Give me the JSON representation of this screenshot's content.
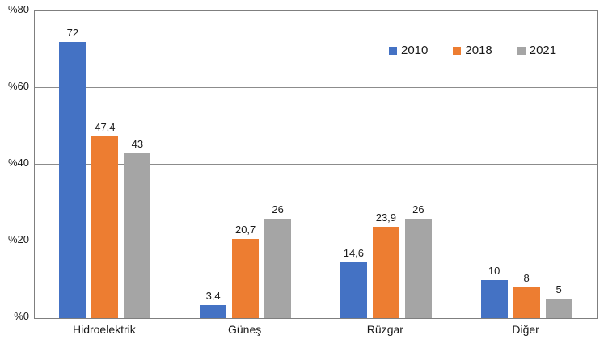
{
  "chart_data": {
    "type": "bar",
    "title": "",
    "xlabel": "",
    "ylabel": "",
    "categories": [
      "Hidroelektrik",
      "Güneş",
      "Rüzgar",
      "Diğer"
    ],
    "series": [
      {
        "name": "2010",
        "color": "#4472C4",
        "values": [
          72,
          3.4,
          14.6,
          10
        ],
        "labels": [
          "72",
          "3,4",
          "14,6",
          "10"
        ]
      },
      {
        "name": "2018",
        "color": "#ED7D31",
        "values": [
          47.4,
          20.7,
          23.9,
          8
        ],
        "labels": [
          "47,4",
          "20,7",
          "23,9",
          "8"
        ]
      },
      {
        "name": "2021",
        "color": "#A5A5A5",
        "values": [
          43,
          26,
          26,
          5
        ],
        "labels": [
          "43",
          "26",
          "26",
          "5"
        ]
      }
    ],
    "ylim": [
      0,
      80
    ],
    "yticks": [
      0,
      20,
      40,
      60,
      80
    ],
    "ytick_labels": [
      "%0",
      "%20",
      "%40",
      "%60",
      "%80"
    ],
    "grid": true,
    "legend_position": "top-right-inside"
  },
  "colors": {
    "background": "#FFFFFF",
    "plot_border": "#7F7F7F",
    "gridline": "#8C8C8C",
    "text": "#1A1A1A"
  }
}
